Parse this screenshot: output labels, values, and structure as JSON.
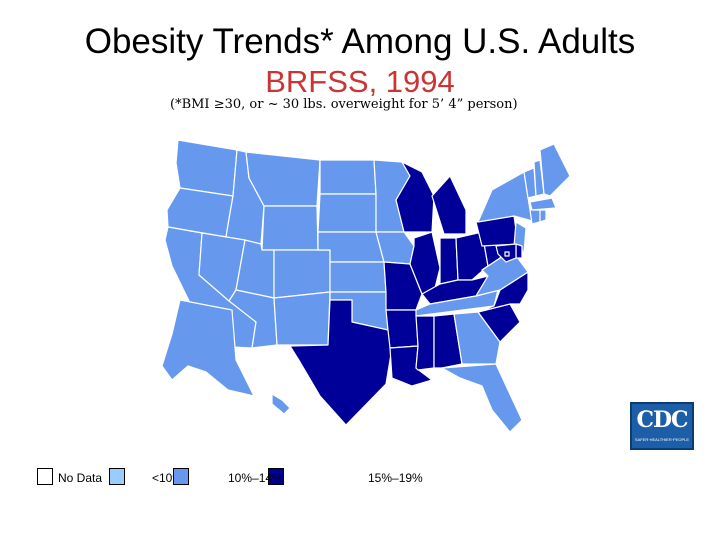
{
  "title": "Obesity Trends* Among U.S. Adults",
  "subtitle": "BRFSS, 1994",
  "note": "(*BMI ≥30, or ~ 30 lbs. overweight for 5’ 4” person)",
  "colors": {
    "no_data": "#ffffff",
    "lt10": "#99ccff",
    "10_14": "#6699ee",
    "15_19": "#000099",
    "subtitle": "#cc3333",
    "border": "#ffffff"
  },
  "legend": [
    {
      "label": "No Data",
      "category": "no_data"
    },
    {
      "label": "<10%",
      "category": "lt10"
    },
    {
      "label": "10%–14%",
      "category": "10_14"
    },
    {
      "label": "15%–19%",
      "category": "15_19"
    }
  ],
  "logo": {
    "text": "CDC",
    "tagline": "SAFER·HEALTHIER·PEOPLE"
  },
  "states": {
    "WA": "10_14",
    "OR": "10_14",
    "CA": "10_14",
    "ID": "10_14",
    "NV": "10_14",
    "MT": "10_14",
    "WY": "10_14",
    "UT": "10_14",
    "AZ": "10_14",
    "CO": "10_14",
    "NM": "10_14",
    "ND": "10_14",
    "SD": "10_14",
    "NE": "10_14",
    "KS": "10_14",
    "OK": "10_14",
    "TX": "15_19",
    "MN": "10_14",
    "IA": "10_14",
    "MO": "15_19",
    "AR": "15_19",
    "LA": "15_19",
    "WI": "15_19",
    "IL": "15_19",
    "MI": "15_19",
    "IN": "15_19",
    "OH": "15_19",
    "KY": "15_19",
    "TN": "10_14",
    "MS": "15_19",
    "AL": "15_19",
    "GA": "10_14",
    "FL": "10_14",
    "SC": "15_19",
    "NC": "15_19",
    "VA": "10_14",
    "WV": "15_19",
    "PA": "15_19",
    "NY": "10_14",
    "VT": "10_14",
    "NH": "10_14",
    "ME": "10_14",
    "MA": "10_14",
    "CT": "10_14",
    "RI": "10_14",
    "NJ": "10_14",
    "DE": "15_19",
    "MD": "15_19",
    "DC": "15_19",
    "AK": "10_14",
    "HI": "10_14"
  }
}
